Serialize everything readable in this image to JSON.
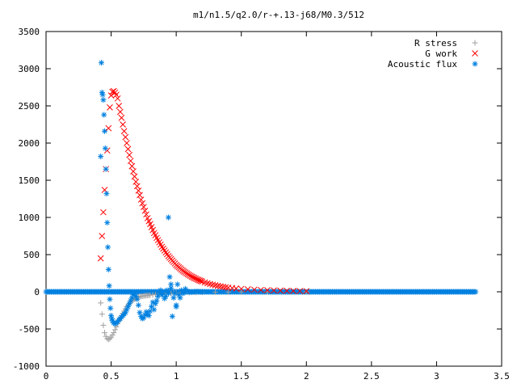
{
  "chart_data": {
    "type": "scatter",
    "title": "m1/n1.5/q2.0/r-+.13-j68/M0.3/512",
    "xlabel": "",
    "ylabel": "",
    "xlim": [
      0,
      3.5
    ],
    "ylim": [
      -1000,
      3500
    ],
    "x_ticks": [
      "0",
      "0.5",
      "1",
      "1.5",
      "2",
      "2.5",
      "3",
      "3.5"
    ],
    "y_ticks": [
      "-1000",
      "-500",
      "0",
      "500",
      "1000",
      "1500",
      "2000",
      "2500",
      "3000",
      "3500"
    ],
    "grid": false,
    "legend_position": "top-right",
    "series": [
      {
        "name": "R stress",
        "marker": "plus",
        "color": "#a0a0a0",
        "x": [
          0.42,
          0.43,
          0.44,
          0.45,
          0.46,
          0.47,
          0.48,
          0.49,
          0.5,
          0.51,
          0.52,
          0.53,
          0.54,
          0.55,
          0.56,
          0.57,
          0.58,
          0.59,
          0.6,
          0.61,
          0.62,
          0.63,
          0.64,
          0.65,
          0.66,
          0.67,
          0.68,
          0.69,
          0.7,
          0.71,
          0.72,
          0.73,
          0.74,
          0.75,
          0.76,
          0.77,
          0.78,
          0.79,
          0.8,
          0.82,
          0.84,
          0.86,
          0.88,
          0.9,
          0.92,
          0.94,
          0.96,
          0.98,
          1.0,
          1.03,
          1.06,
          1.1,
          1.15,
          1.2,
          1.3,
          1.4,
          1.5,
          1.7,
          2.0
        ],
        "y": [
          -150,
          -300,
          -450,
          -550,
          -600,
          -630,
          -640,
          -630,
          -610,
          -580,
          -550,
          -510,
          -470,
          -430,
          -390,
          -350,
          -320,
          -290,
          -260,
          -230,
          -200,
          -180,
          -160,
          -140,
          -120,
          -110,
          -95,
          -85,
          -75,
          -70,
          -65,
          -60,
          -58,
          -55,
          -52,
          -50,
          -48,
          -46,
          -44,
          -40,
          -36,
          -33,
          -30,
          -27,
          -24,
          -22,
          -20,
          -18,
          -16,
          -14,
          -12,
          -10,
          -8,
          -6,
          -4,
          -3,
          -2,
          -1,
          0
        ]
      },
      {
        "name": "G work",
        "marker": "cross",
        "color": "#ff0000",
        "x": [
          0.42,
          0.43,
          0.44,
          0.45,
          0.46,
          0.47,
          0.48,
          0.49,
          0.5,
          0.51,
          0.52,
          0.53,
          0.54,
          0.55,
          0.56,
          0.57,
          0.58,
          0.59,
          0.6,
          0.61,
          0.62,
          0.63,
          0.64,
          0.65,
          0.66,
          0.67,
          0.68,
          0.69,
          0.7,
          0.71,
          0.72,
          0.73,
          0.74,
          0.75,
          0.76,
          0.77,
          0.78,
          0.79,
          0.8,
          0.81,
          0.82,
          0.83,
          0.84,
          0.85,
          0.86,
          0.87,
          0.88,
          0.89,
          0.9,
          0.91,
          0.92,
          0.93,
          0.94,
          0.95,
          0.96,
          0.97,
          0.98,
          0.99,
          1.0,
          1.01,
          1.02,
          1.03,
          1.04,
          1.05,
          1.06,
          1.07,
          1.08,
          1.09,
          1.1,
          1.11,
          1.12,
          1.13,
          1.14,
          1.15,
          1.16,
          1.17,
          1.18,
          1.19,
          1.2,
          1.22,
          1.24,
          1.26,
          1.28,
          1.3,
          1.32,
          1.34,
          1.36,
          1.38,
          1.4,
          1.43,
          1.46,
          1.5,
          1.55,
          1.6,
          1.65,
          1.7,
          1.75,
          1.8,
          1.85,
          1.9,
          1.95,
          2.0
        ],
        "y": [
          450,
          750,
          1070,
          1370,
          1650,
          1900,
          2200,
          2480,
          2640,
          2690,
          2700,
          2680,
          2650,
          2600,
          2500,
          2420,
          2340,
          2250,
          2160,
          2080,
          2000,
          1920,
          1840,
          1760,
          1690,
          1620,
          1550,
          1480,
          1420,
          1360,
          1300,
          1240,
          1190,
          1140,
          1090,
          1040,
          990,
          950,
          910,
          870,
          830,
          790,
          760,
          725,
          695,
          665,
          635,
          605,
          580,
          555,
          530,
          505,
          480,
          460,
          440,
          420,
          400,
          380,
          360,
          345,
          330,
          315,
          300,
          285,
          272,
          260,
          248,
          236,
          225,
          214,
          204,
          194,
          185,
          176,
          168,
          160,
          152,
          145,
          138,
          126,
          115,
          105,
          96,
          88,
          80,
          73,
          67,
          61,
          56,
          50,
          45,
          40,
          34,
          29,
          25,
          22,
          19,
          16,
          14,
          12,
          10,
          9
        ]
      },
      {
        "name": "Acoustic flux",
        "marker": "star",
        "color": "#0080e0",
        "x": [
          0.42,
          0.425,
          0.43,
          0.435,
          0.44,
          0.445,
          0.45,
          0.455,
          0.46,
          0.465,
          0.47,
          0.475,
          0.48,
          0.485,
          0.49,
          0.495,
          0.5,
          0.505,
          0.51,
          0.52,
          0.53,
          0.54,
          0.55,
          0.56,
          0.57,
          0.58,
          0.59,
          0.6,
          0.61,
          0.62,
          0.63,
          0.64,
          0.65,
          0.66,
          0.67,
          0.68,
          0.69,
          0.7,
          0.71,
          0.72,
          0.73,
          0.74,
          0.75,
          0.76,
          0.77,
          0.78,
          0.79,
          0.8,
          0.81,
          0.82,
          0.83,
          0.84,
          0.85,
          0.86,
          0.87,
          0.88,
          0.89,
          0.9,
          0.91,
          0.92,
          0.93,
          0.94,
          0.95,
          0.96,
          0.97,
          0.98,
          0.99,
          1.0,
          1.01,
          1.02,
          1.03,
          1.04,
          1.05,
          1.06,
          1.07,
          1.08,
          1.1,
          1.12,
          1.14,
          1.16,
          1.18,
          1.2,
          0.94,
          0.96,
          1.0
        ],
        "y": [
          1820,
          3080,
          2680,
          2650,
          2580,
          2380,
          2160,
          1930,
          1650,
          1320,
          930,
          600,
          300,
          80,
          -100,
          -220,
          -320,
          -360,
          -390,
          -420,
          -430,
          -420,
          -400,
          -380,
          -360,
          -340,
          -320,
          -300,
          -280,
          -240,
          -200,
          -160,
          -120,
          -80,
          -40,
          -20,
          -60,
          -100,
          -180,
          -280,
          -330,
          -360,
          -350,
          -310,
          -270,
          -300,
          -320,
          -260,
          -200,
          -140,
          -240,
          -160,
          -120,
          -60,
          -20,
          20,
          -40,
          -10,
          -90,
          -60,
          20,
          -20,
          200,
          50,
          -330,
          -80,
          -20,
          -180,
          100,
          -40,
          -80,
          20,
          -20,
          -10,
          40,
          10,
          0,
          -5,
          0,
          5,
          0,
          0,
          1000,
          100,
          -200
        ]
      }
    ],
    "zero_band": {
      "x_start": 0,
      "x_end": 3.3,
      "y": 0,
      "series_colors": [
        "#0080e0",
        "#0080e0"
      ]
    }
  }
}
